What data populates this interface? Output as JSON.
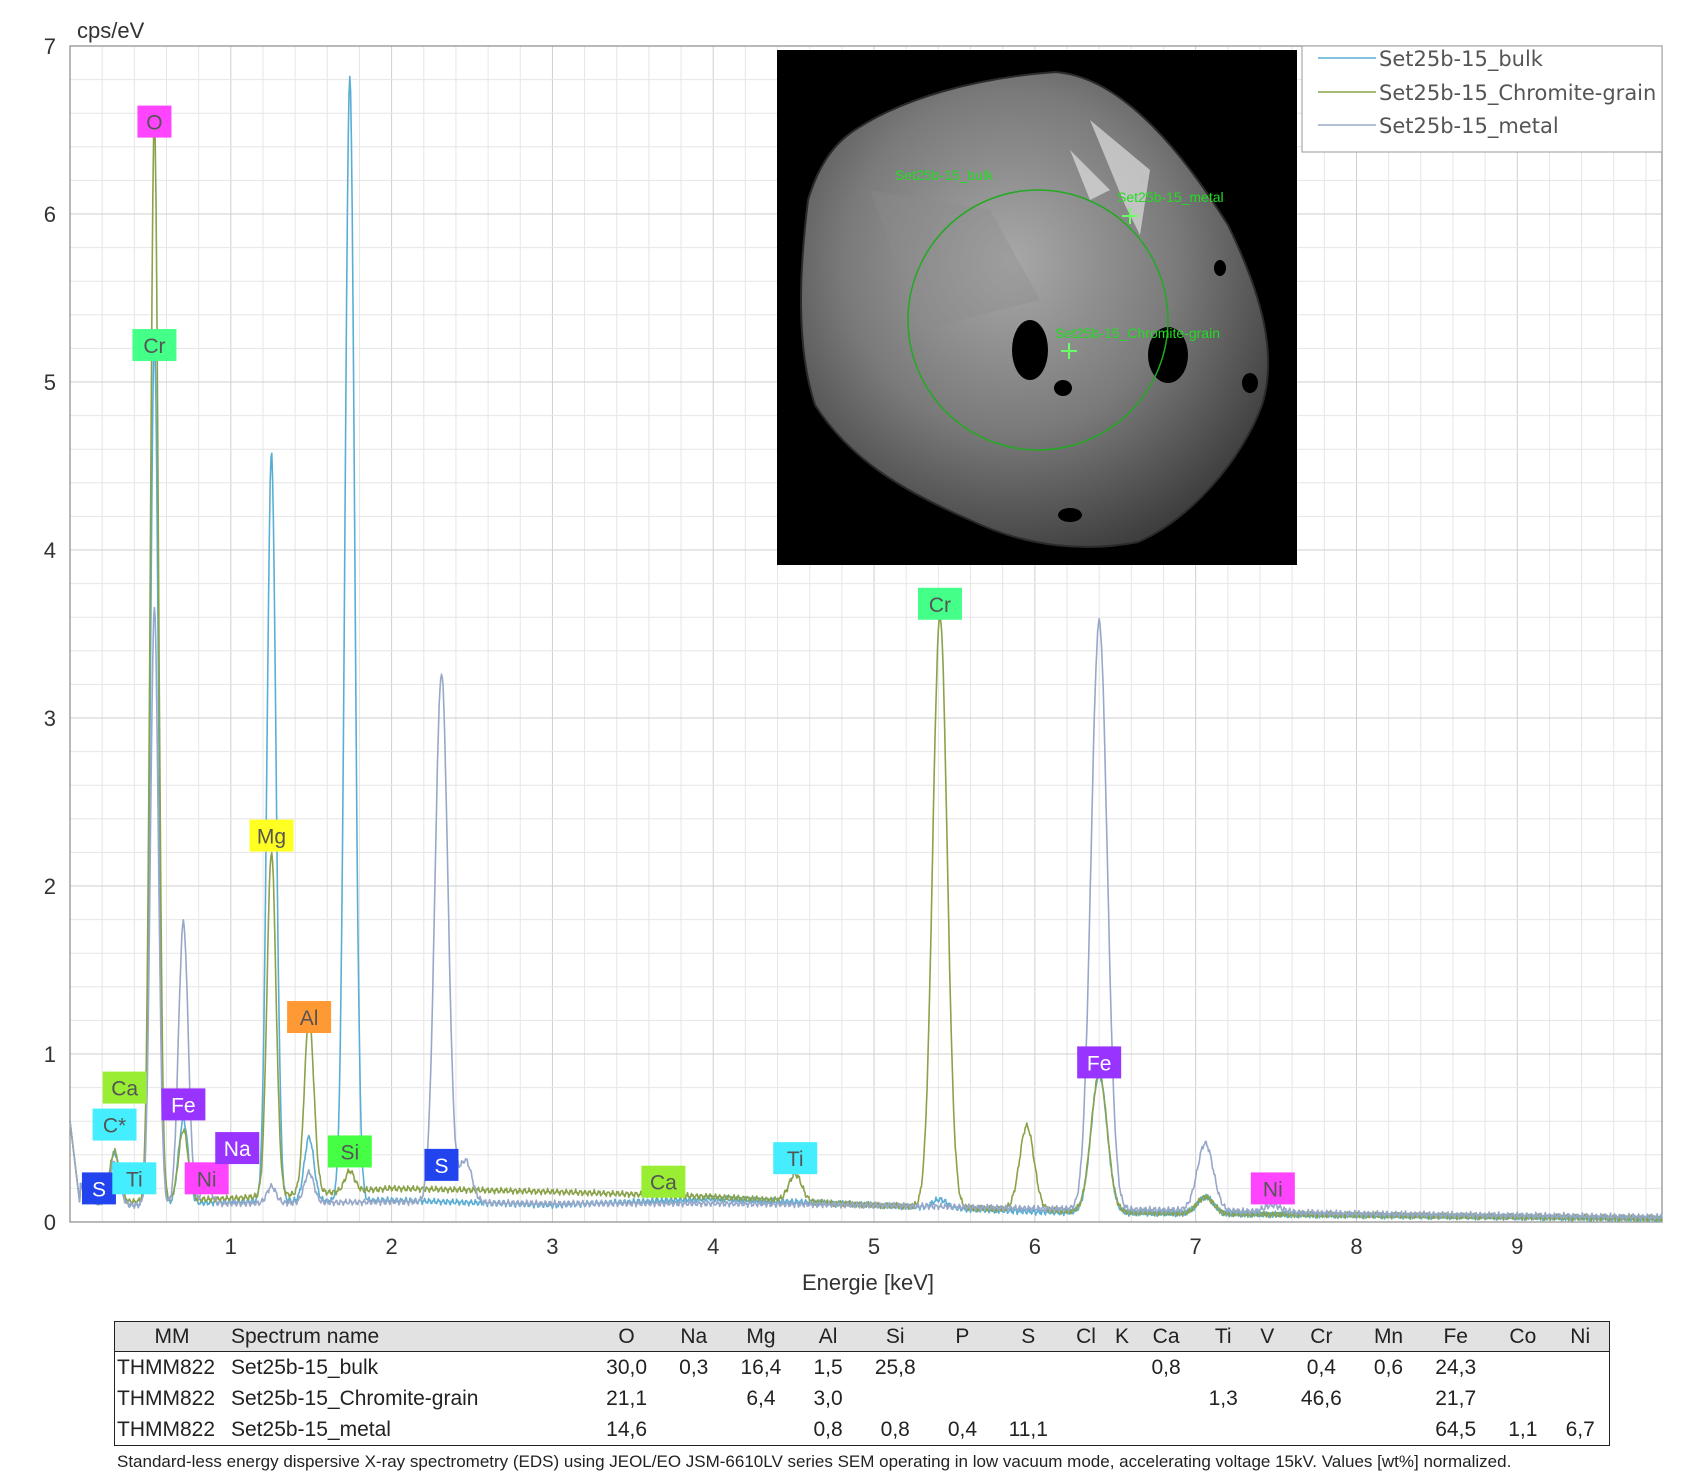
{
  "chart_data": {
    "type": "line",
    "ylabel": "cps/eV",
    "xlabel": "Energie [keV]",
    "xlim": [
      0,
      9.9
    ],
    "ylim": [
      0,
      7
    ],
    "x_ticks": [
      1,
      2,
      3,
      4,
      5,
      6,
      7,
      8,
      9
    ],
    "y_ticks": [
      0,
      1,
      2,
      3,
      4,
      5,
      6,
      7
    ],
    "grid": true,
    "legend_position": "top-right",
    "series": [
      {
        "name": "Set25b-15_bulk",
        "color": "#5aaed4",
        "baseline": [
          [
            0.0,
            0.3
          ],
          [
            0.15,
            0.12
          ],
          [
            0.4,
            0.1
          ],
          [
            1.0,
            0.12
          ],
          [
            2.0,
            0.13
          ],
          [
            3.0,
            0.1
          ],
          [
            4.0,
            0.14
          ],
          [
            5.0,
            0.1
          ],
          [
            6.0,
            0.06
          ],
          [
            7.0,
            0.05
          ],
          [
            8.0,
            0.04
          ],
          [
            9.9,
            0.02
          ]
        ],
        "peaks": [
          {
            "x": 0.277,
            "y": 0.3,
            "w": 0.03
          },
          {
            "x": 0.525,
            "y": 5.15,
            "w": 0.025
          },
          {
            "x": 0.705,
            "y": 0.5,
            "w": 0.03
          },
          {
            "x": 1.253,
            "y": 4.45,
            "w": 0.028
          },
          {
            "x": 1.487,
            "y": 0.38,
            "w": 0.03
          },
          {
            "x": 1.74,
            "y": 6.68,
            "w": 0.03
          },
          {
            "x": 5.41,
            "y": 0.05,
            "w": 0.045
          },
          {
            "x": 6.4,
            "y": 0.82,
            "w": 0.05
          },
          {
            "x": 7.06,
            "y": 0.1,
            "w": 0.05
          }
        ]
      },
      {
        "name": "Set25b-15_Chromite-grain",
        "color": "#8aa24a",
        "baseline": [
          [
            0.0,
            0.3
          ],
          [
            0.15,
            0.12
          ],
          [
            0.4,
            0.12
          ],
          [
            1.0,
            0.14
          ],
          [
            2.0,
            0.2
          ],
          [
            3.0,
            0.18
          ],
          [
            4.0,
            0.15
          ],
          [
            5.0,
            0.1
          ],
          [
            6.0,
            0.07
          ],
          [
            7.0,
            0.05
          ],
          [
            8.0,
            0.04
          ],
          [
            9.9,
            0.02
          ]
        ],
        "peaks": [
          {
            "x": 0.277,
            "y": 0.3,
            "w": 0.03
          },
          {
            "x": 0.525,
            "y": 6.45,
            "w": 0.025
          },
          {
            "x": 0.705,
            "y": 0.42,
            "w": 0.03
          },
          {
            "x": 1.253,
            "y": 2.05,
            "w": 0.028
          },
          {
            "x": 1.487,
            "y": 1.05,
            "w": 0.03
          },
          {
            "x": 1.74,
            "y": 0.12,
            "w": 0.03
          },
          {
            "x": 4.51,
            "y": 0.16,
            "w": 0.04
          },
          {
            "x": 5.41,
            "y": 3.52,
            "w": 0.045
          },
          {
            "x": 5.95,
            "y": 0.5,
            "w": 0.045
          },
          {
            "x": 6.4,
            "y": 0.82,
            "w": 0.05
          },
          {
            "x": 7.06,
            "y": 0.1,
            "w": 0.05
          }
        ]
      },
      {
        "name": "Set25b-15_metal",
        "color": "#98a8c8",
        "baseline": [
          [
            0.0,
            0.3
          ],
          [
            0.15,
            0.12
          ],
          [
            0.4,
            0.1
          ],
          [
            1.0,
            0.11
          ],
          [
            2.0,
            0.12
          ],
          [
            3.0,
            0.11
          ],
          [
            4.0,
            0.11
          ],
          [
            5.0,
            0.1
          ],
          [
            6.0,
            0.08
          ],
          [
            7.0,
            0.07
          ],
          [
            8.0,
            0.05
          ],
          [
            9.9,
            0.03
          ]
        ],
        "peaks": [
          {
            "x": 0.277,
            "y": 0.25,
            "w": 0.03
          },
          {
            "x": 0.525,
            "y": 3.55,
            "w": 0.025
          },
          {
            "x": 0.705,
            "y": 1.68,
            "w": 0.03
          },
          {
            "x": 0.85,
            "y": 0.12,
            "w": 0.03
          },
          {
            "x": 1.253,
            "y": 0.1,
            "w": 0.028
          },
          {
            "x": 1.487,
            "y": 0.18,
            "w": 0.03
          },
          {
            "x": 2.31,
            "y": 3.15,
            "w": 0.04
          },
          {
            "x": 2.46,
            "y": 0.25,
            "w": 0.04
          },
          {
            "x": 6.4,
            "y": 3.5,
            "w": 0.05
          },
          {
            "x": 7.06,
            "y": 0.4,
            "w": 0.05
          },
          {
            "x": 7.48,
            "y": 0.04,
            "w": 0.05
          }
        ]
      }
    ],
    "element_markers": [
      {
        "label": "O",
        "x": 0.525,
        "y": 6.55,
        "color": "#ff44ff"
      },
      {
        "label": "Cr",
        "x": 0.525,
        "y": 5.22,
        "color": "#44ff88"
      },
      {
        "label": "Ca",
        "x": 0.34,
        "y": 0.8,
        "color": "#99ee33"
      },
      {
        "label": "C*",
        "x": 0.277,
        "y": 0.58,
        "color": "#44eeff"
      },
      {
        "label": "S",
        "x": 0.18,
        "y": 0.2,
        "color": "#2244ee"
      },
      {
        "label": "Ti",
        "x": 0.4,
        "y": 0.26,
        "color": "#44eeff"
      },
      {
        "label": "Fe",
        "x": 0.705,
        "y": 0.7,
        "color": "#9933ff"
      },
      {
        "label": "Ni",
        "x": 0.85,
        "y": 0.26,
        "color": "#ff44ff"
      },
      {
        "label": "Na",
        "x": 1.04,
        "y": 0.44,
        "color": "#9933ff"
      },
      {
        "label": "Mg",
        "x": 1.253,
        "y": 2.3,
        "color": "#ffff22"
      },
      {
        "label": "Al",
        "x": 1.487,
        "y": 1.22,
        "color": "#ff9933"
      },
      {
        "label": "Si",
        "x": 1.74,
        "y": 0.42,
        "color": "#44ff44"
      },
      {
        "label": "S",
        "x": 2.31,
        "y": 0.34,
        "color": "#2244ee"
      },
      {
        "label": "Ca",
        "x": 3.69,
        "y": 0.24,
        "color": "#99ee33"
      },
      {
        "label": "Ti",
        "x": 4.51,
        "y": 0.38,
        "color": "#44eeff"
      },
      {
        "label": "Cr",
        "x": 5.41,
        "y": 3.68,
        "color": "#44ff88"
      },
      {
        "label": "Fe",
        "x": 6.4,
        "y": 0.95,
        "color": "#9933ff"
      },
      {
        "label": "Ni",
        "x": 7.48,
        "y": 0.2,
        "color": "#ff44ff"
      }
    ]
  },
  "sem_image": {
    "labels": [
      "Set25b-15_bulk",
      "Set25b-15_metal",
      "Set25b-15_Chromite-grain"
    ]
  },
  "table": {
    "headers": [
      "MM",
      "Spectrum name",
      "O",
      "Na",
      "Mg",
      "Al",
      "Si",
      "P",
      "S",
      "Cl",
      "K",
      "Ca",
      "Ti",
      "V",
      "Cr",
      "Mn",
      "Fe",
      "Co",
      "Ni"
    ],
    "rows": [
      [
        "THMM822",
        "Set25b-15_bulk",
        "30,0",
        "0,3",
        "16,4",
        "1,5",
        "25,8",
        "",
        "",
        "",
        "",
        "0,8",
        "",
        "",
        "0,4",
        "0,6",
        "24,3",
        "",
        ""
      ],
      [
        "THMM822",
        "Set25b-15_Chromite-grain",
        "21,1",
        "",
        "6,4",
        "3,0",
        "",
        "",
        "",
        "",
        "",
        "",
        "1,3",
        "",
        "46,6",
        "",
        "21,7",
        "",
        ""
      ],
      [
        "THMM822",
        "Set25b-15_metal",
        "14,6",
        "",
        "",
        "0,8",
        "0,8",
        "0,4",
        "11,1",
        "",
        "",
        "",
        "",
        "",
        "",
        "",
        "64,5",
        "1,1",
        "6,7"
      ]
    ]
  },
  "caption": "Standard-less energy dispersive X-ray spectrometry (EDS) using JEOL/EO JSM-6610LV series SEM operating in low vacuum mode, accelerating voltage 15kV. Values [wt%] normalized."
}
